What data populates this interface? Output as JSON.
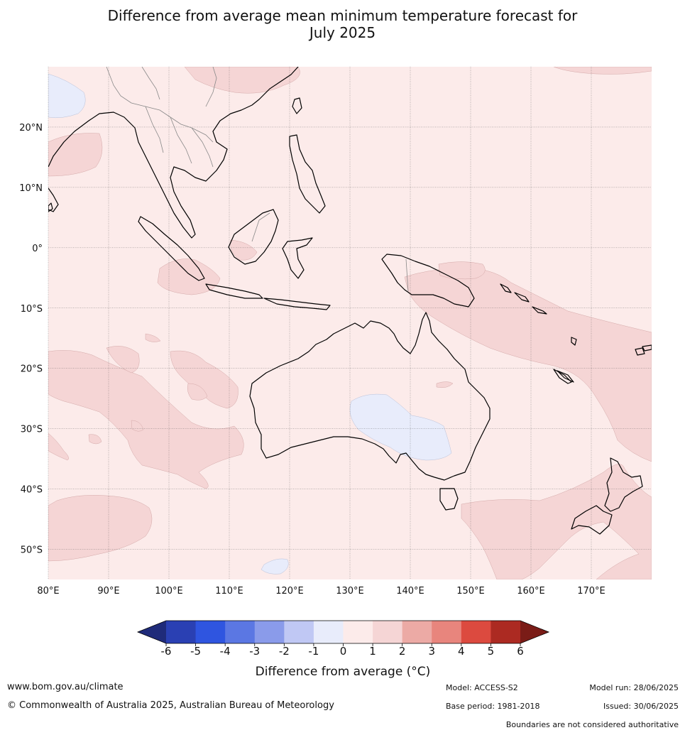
{
  "title": {
    "line1": "Difference from average mean minimum temperature forecast for",
    "line2": "July 2025"
  },
  "map": {
    "lat_labels": [
      "20°N",
      "10°N",
      "0°",
      "10°S",
      "20°S",
      "30°S",
      "40°S",
      "50°S"
    ],
    "lon_labels": [
      "80°E",
      "90°E",
      "100°E",
      "110°E",
      "120°E",
      "130°E",
      "140°E",
      "150°E",
      "160°E",
      "170°E"
    ],
    "extent": {
      "lon_min": 80,
      "lon_max": 180,
      "lat_min": -55,
      "lat_max": 30
    },
    "colors": {
      "near_zero_pos": "#fcebea",
      "pos_1_2": "#f5d5d5",
      "neg_0_1": "#e8ecfb",
      "coast": "#000000",
      "borders": "#888888",
      "grid": "#555555"
    }
  },
  "colorbar": {
    "ticks": [
      "-6",
      "-5",
      "-4",
      "-3",
      "-2",
      "-1",
      "0",
      "1",
      "2",
      "3",
      "4",
      "5",
      "6"
    ],
    "colors": [
      "#1f2b7a",
      "#2a40b3",
      "#2f55e0",
      "#5b77e3",
      "#8a9bea",
      "#c0c8f4",
      "#e8ecfb",
      "#fcebea",
      "#f5d5d5",
      "#ecaaa5",
      "#e8857d",
      "#dc4a3f",
      "#ac2a22",
      "#7a1c17"
    ],
    "label": "Difference from average (°C)"
  },
  "footer": {
    "website": "www.bom.gov.au/climate",
    "copyright": "© Commonwealth of Australia 2025, Australian Bureau of Meteorology",
    "model": "Model: ACCESS-S2",
    "model_run": "Model run: 28/06/2025",
    "base_period": "Base period: 1981-2018",
    "issued": "Issued: 30/06/2025",
    "disclaimer": "Boundaries are not considered authoritative"
  }
}
